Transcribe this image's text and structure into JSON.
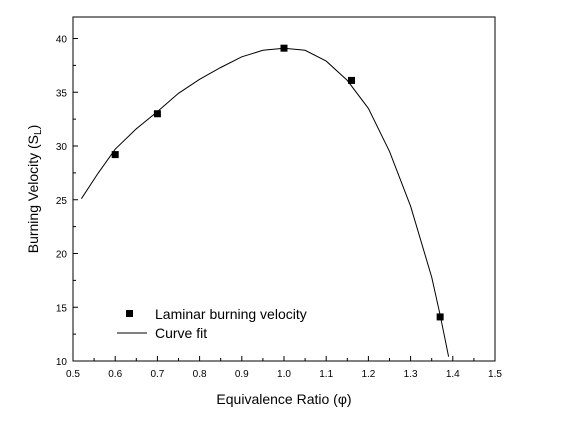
{
  "chart_data": {
    "type": "scatter",
    "xlabel": "Equivalence Ratio (φ)",
    "ylabel": "Burning Velocity (S",
    "ylabel_sub": "L",
    "ylabel_end": ")",
    "xlim": [
      0.5,
      1.5
    ],
    "ylim": [
      10,
      42
    ],
    "xticks": [
      "0.5",
      "0.6",
      "0.7",
      "0.8",
      "0.9",
      "1.0",
      "1.1",
      "1.2",
      "1.3",
      "1.4",
      "1.5"
    ],
    "yticks": [
      "10",
      "15",
      "20",
      "25",
      "30",
      "35",
      "40"
    ],
    "grid": false,
    "legend_position": "bottom-left",
    "series": [
      {
        "name": "Laminar burning velocity",
        "kind": "markers",
        "marker": "square",
        "color": "#000000",
        "x": [
          0.6,
          0.7,
          1.0,
          1.16,
          1.37
        ],
        "y": [
          29.2,
          33.0,
          39.1,
          36.1,
          14.1
        ]
      },
      {
        "name": "Curve fit",
        "kind": "line",
        "color": "#000000",
        "x": [
          0.52,
          0.56,
          0.6,
          0.65,
          0.7,
          0.75,
          0.8,
          0.85,
          0.9,
          0.95,
          1.0,
          1.05,
          1.1,
          1.15,
          1.2,
          1.25,
          1.3,
          1.35,
          1.37,
          1.39
        ],
        "y": [
          25.1,
          27.5,
          29.7,
          31.6,
          33.2,
          34.9,
          36.2,
          37.3,
          38.3,
          38.9,
          39.1,
          38.9,
          37.9,
          36.1,
          33.5,
          29.5,
          24.4,
          17.8,
          14.3,
          10.4
        ]
      }
    ]
  }
}
